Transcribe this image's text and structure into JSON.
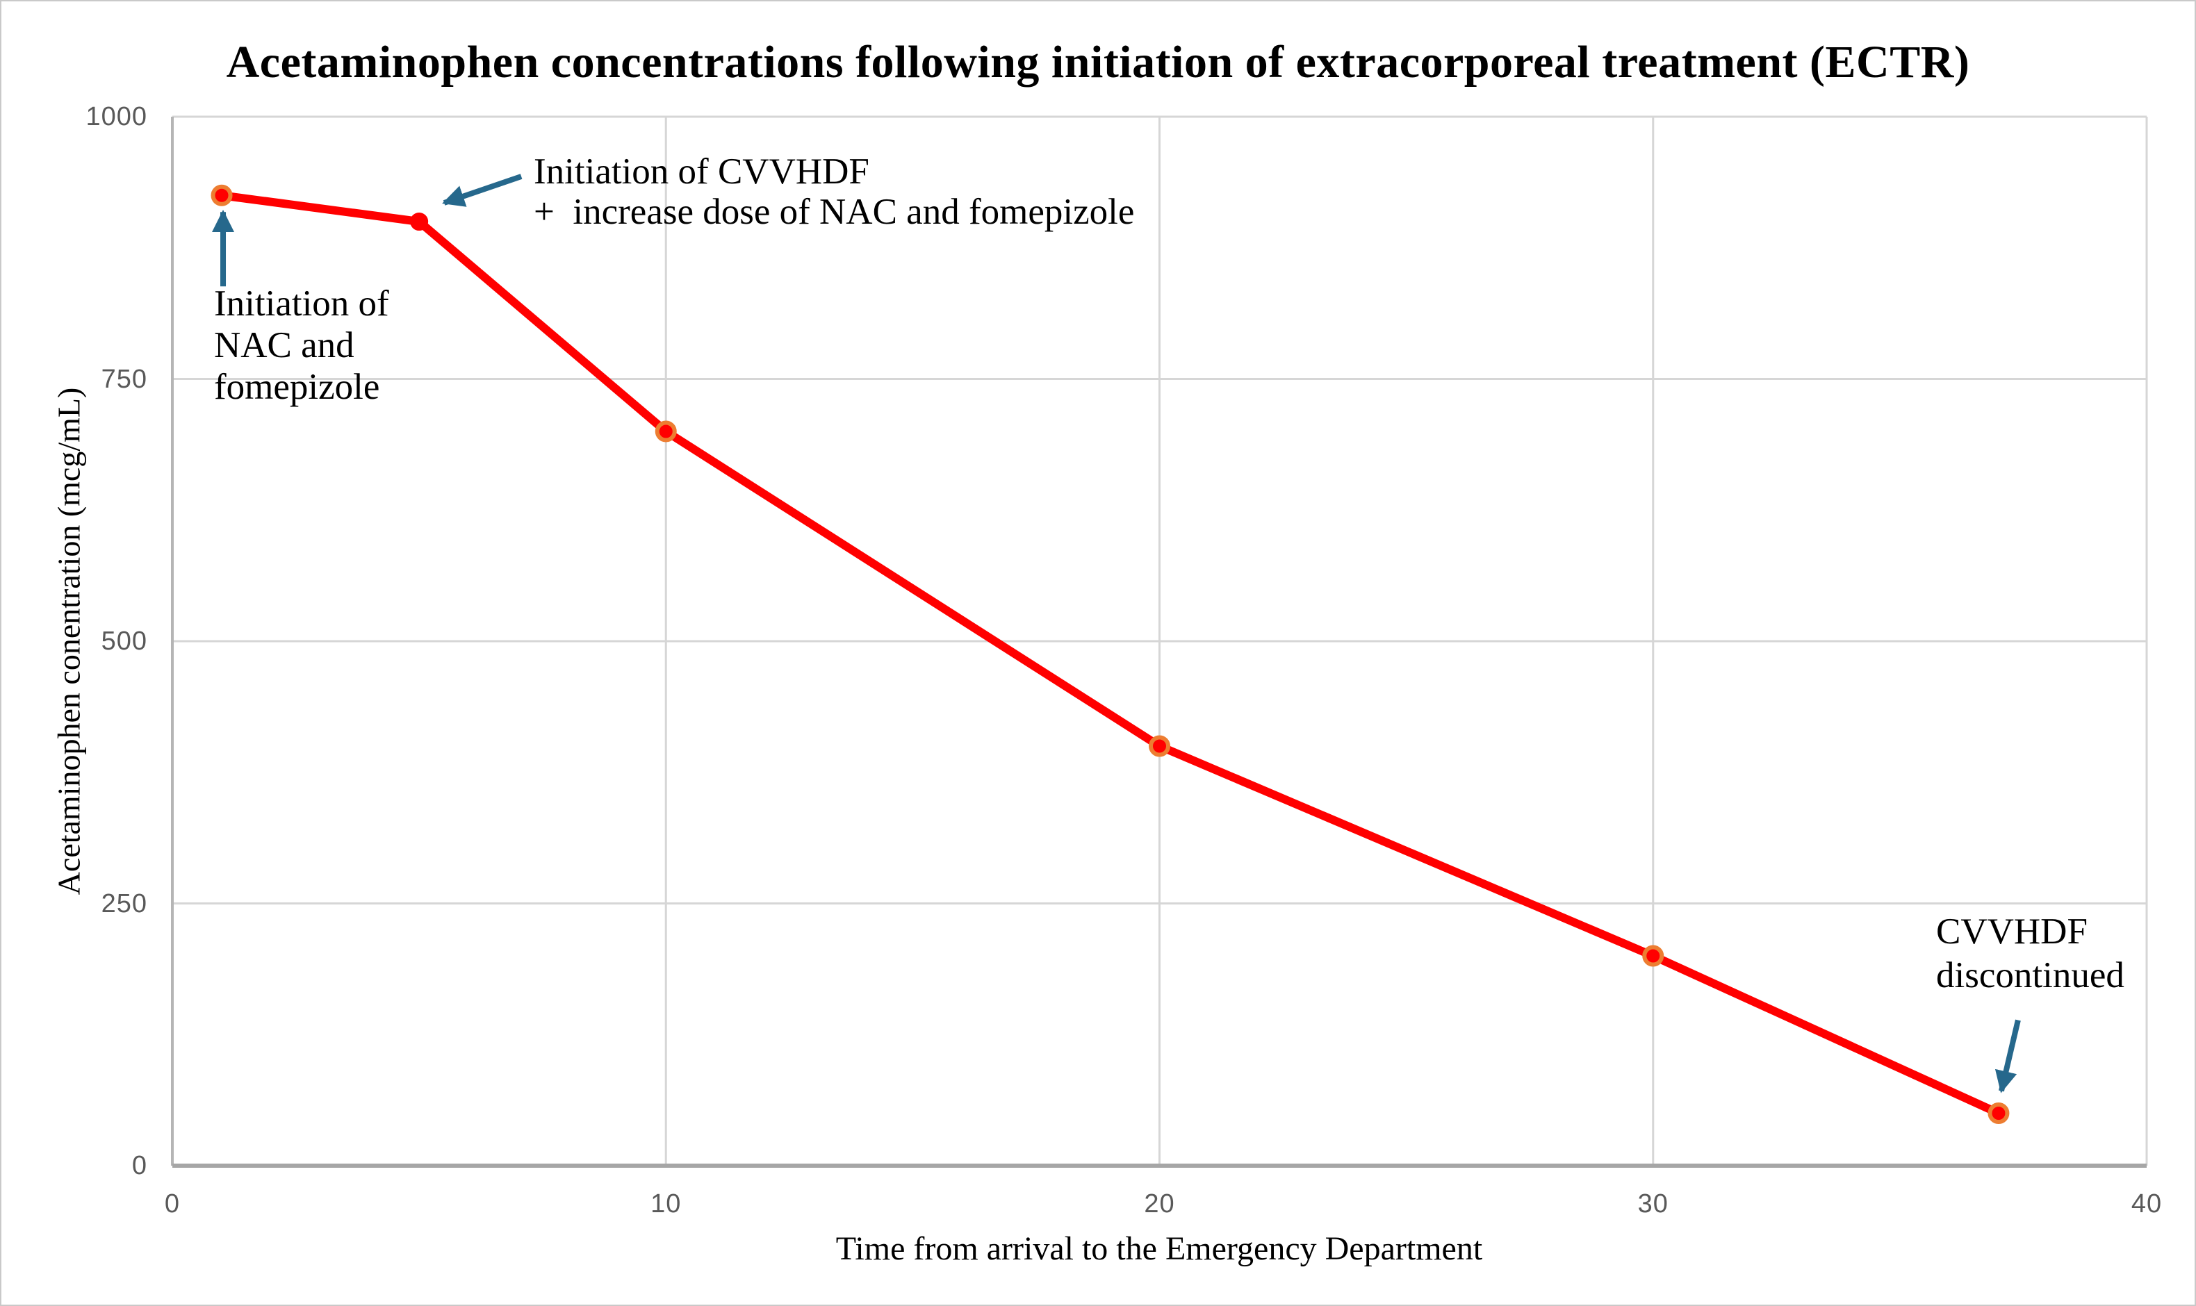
{
  "chart_data": {
    "type": "line",
    "title": "Acetaminophen concentrations following initiation of extracorporeal treatment (ECTR)",
    "xlabel": "Time from arrival to the Emergency Department",
    "ylabel": "Acetaminophen conentration (mcg/mL)",
    "xlim": [
      0,
      40
    ],
    "ylim": [
      0,
      1000
    ],
    "x_ticks": [
      0,
      10,
      20,
      30,
      40
    ],
    "y_ticks": [
      0,
      250,
      500,
      750,
      1000
    ],
    "grid": true,
    "legend": "none",
    "series": [
      {
        "name": "Acetaminophen concentration",
        "x": [
          1,
          5,
          10,
          20,
          30,
          37
        ],
        "y": [
          925,
          900,
          700,
          400,
          200,
          50
        ],
        "line_color": "#FF0000",
        "marker_fill": "#FF0000",
        "marker_ring_color": "#ED7D31",
        "marker_has_ring": [
          true,
          false,
          true,
          true,
          true,
          true
        ]
      }
    ],
    "annotations": [
      {
        "id": "nac-start",
        "lines": [
          "Initiation of",
          "NAC and",
          "fomepizole"
        ],
        "points_to": {
          "x": 1,
          "y": 925
        }
      },
      {
        "id": "cvvhdf-start",
        "lines": [
          "Initiation of CVVHDF",
          "+  increase dose of NAC and fomepizole"
        ],
        "points_to": {
          "x": 5,
          "y": 900
        }
      },
      {
        "id": "cvvhdf-stop",
        "lines": [
          "CVVHDF",
          "discontinued"
        ],
        "points_to": {
          "x": 37,
          "y": 50
        }
      }
    ],
    "colors": {
      "gridline": "#D6D6D6",
      "axis_line_left": "#B5B5B5",
      "axis_line_bottom": "#A6A6A6",
      "tick_label": "#595959",
      "title_text": "#000000",
      "annotation_text": "#000000",
      "annotation_arrow": "#26688C"
    }
  }
}
